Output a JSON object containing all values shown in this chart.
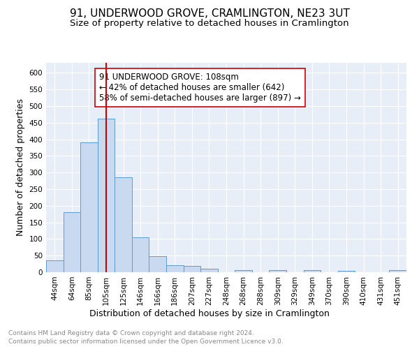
{
  "title": "91, UNDERWOOD GROVE, CRAMLINGTON, NE23 3UT",
  "subtitle": "Size of property relative to detached houses in Cramlington",
  "xlabel": "Distribution of detached houses by size in Cramlington",
  "ylabel": "Number of detached properties",
  "footnote1": "Contains HM Land Registry data © Crown copyright and database right 2024.",
  "footnote2": "Contains public sector information licensed under the Open Government Licence v3.0.",
  "bin_labels": [
    "44sqm",
    "64sqm",
    "85sqm",
    "105sqm",
    "125sqm",
    "146sqm",
    "166sqm",
    "186sqm",
    "207sqm",
    "227sqm",
    "248sqm",
    "268sqm",
    "288sqm",
    "309sqm",
    "329sqm",
    "349sqm",
    "370sqm",
    "390sqm",
    "410sqm",
    "431sqm",
    "451sqm"
  ],
  "bin_values": [
    35,
    180,
    390,
    462,
    285,
    104,
    48,
    22,
    18,
    10,
    0,
    7,
    0,
    6,
    0,
    6,
    0,
    4,
    0,
    0,
    6
  ],
  "bar_color": "#c9d9f0",
  "bar_edge_color": "#5b9bd5",
  "red_line_x": 3,
  "red_line_color": "#cc0000",
  "annotation_text": "91 UNDERWOOD GROVE: 108sqm\n← 42% of detached houses are smaller (642)\n58% of semi-detached houses are larger (897) →",
  "annotation_box_color": "white",
  "annotation_box_edge": "#cc0000",
  "ylim": [
    0,
    630
  ],
  "yticks": [
    0,
    50,
    100,
    150,
    200,
    250,
    300,
    350,
    400,
    450,
    500,
    550,
    600
  ],
  "axes_bg_color": "#e8eef8",
  "grid_color": "white",
  "title_fontsize": 11,
  "subtitle_fontsize": 9.5,
  "xlabel_fontsize": 9,
  "ylabel_fontsize": 9,
  "annotation_fontsize": 8.5,
  "tick_fontsize": 7.5,
  "footnote_fontsize": 6.5
}
